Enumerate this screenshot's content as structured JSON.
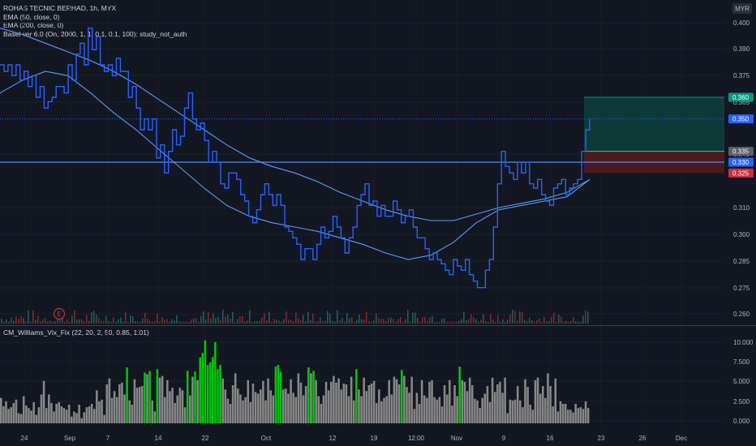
{
  "legend": {
    "symbol_line": "ROHAS TECNIC BERHAD, 1h, MYX",
    "ema50_line": "EMA (50, close, 0)",
    "ema200_line": "EMA (200, close, 0)",
    "basel_line": "Basel ver 6.0 (On, 2000, 1, 1, 0.1, 0.1, 100): study_not_auth",
    "indicator_line": "CM_Williams_Vix_Fix (22, 20, 2, 50, 0.85, 1.01)"
  },
  "currency_badge": "MYR",
  "earnings_marker": "E",
  "colors": {
    "background": "#131722",
    "price_line": "#2962ff",
    "ema_line": "#5b9cf6",
    "target_zone": "#0c3b37",
    "stop_zone": "#4a1a1d",
    "tag_blue": "#2962ff",
    "tag_green": "#089981",
    "tag_red": "#cc2f3c",
    "vix_gray": "#888888",
    "vix_green": "#00c805",
    "vol_green": "#1f5f57",
    "vol_red": "#7a2a2f"
  },
  "chart_data": [
    {
      "type": "line",
      "title": "ROHAS TECNIC BERHAD, 1h, MYX",
      "ylabel": "MYR",
      "ylim": [
        0.255,
        0.405
      ],
      "x_ticks": [
        "24",
        "Sep",
        "7",
        "14",
        "22",
        "Oct",
        "12",
        "19",
        "12:00",
        "Nov",
        "9",
        "16",
        "23",
        "26",
        "Dec"
      ],
      "y_ticks": [
        "0.400",
        "0.390",
        "0.375",
        "0.365",
        "0.340",
        "0.310",
        "0.300",
        "0.285",
        "0.275",
        "0.260"
      ],
      "price_tags": [
        {
          "label": "0.360",
          "kind": "target"
        },
        {
          "label": "0.350",
          "kind": "last"
        },
        {
          "label": "0.335",
          "kind": "entry"
        },
        {
          "label": "0.330",
          "kind": "level"
        },
        {
          "label": "0.325",
          "kind": "stop"
        }
      ],
      "horizontal_levels": [
        0.35,
        0.33
      ],
      "position_zones": {
        "target": [
          0.335,
          0.36
        ],
        "stop": [
          0.325,
          0.335
        ]
      },
      "series": [
        {
          "name": "Close",
          "values": [
            0.375,
            0.372,
            0.375,
            0.37,
            0.375,
            0.368,
            0.372,
            0.365,
            0.37,
            0.36,
            0.365,
            0.355,
            0.358,
            0.36,
            0.365,
            0.365,
            0.362,
            0.375,
            0.368,
            0.38,
            0.385,
            0.375,
            0.392,
            0.382,
            0.388,
            0.375,
            0.372,
            0.375,
            0.37,
            0.378,
            0.372,
            0.372,
            0.36,
            0.365,
            0.355,
            0.345,
            0.35,
            0.345,
            0.35,
            0.332,
            0.338,
            0.325,
            0.335,
            0.345,
            0.338,
            0.342,
            0.355,
            0.362,
            0.35,
            0.345,
            0.348,
            0.34,
            0.33,
            0.335,
            0.33,
            0.32,
            0.318,
            0.325,
            0.325,
            0.322,
            0.315,
            0.312,
            0.305,
            0.302,
            0.308,
            0.315,
            0.32,
            0.315,
            0.31,
            0.315,
            0.31,
            0.3,
            0.298,
            0.295,
            0.292,
            0.285,
            0.29,
            0.29,
            0.285,
            0.292,
            0.3,
            0.295,
            0.298,
            0.305,
            0.3,
            0.295,
            0.288,
            0.295,
            0.3,
            0.31,
            0.315,
            0.32,
            0.31,
            0.312,
            0.305,
            0.31,
            0.305,
            0.305,
            0.312,
            0.308,
            0.302,
            0.305,
            0.308,
            0.3,
            0.295,
            0.295,
            0.29,
            0.285,
            0.288,
            0.285,
            0.283,
            0.28,
            0.278,
            0.285,
            0.282,
            0.28,
            0.285,
            0.278,
            0.275,
            0.272,
            0.272,
            0.28,
            0.285,
            0.3,
            0.32,
            0.335,
            0.328,
            0.325,
            0.322,
            0.33,
            0.325,
            0.33,
            0.32,
            0.318,
            0.322,
            0.315,
            0.312,
            0.31,
            0.318,
            0.32,
            0.322,
            0.315,
            0.318,
            0.32,
            0.322,
            0.335,
            0.345,
            0.35
          ]
        },
        {
          "name": "EMA 50",
          "values": [
            0.362,
            0.368,
            0.372,
            0.37,
            0.362,
            0.353,
            0.345,
            0.336,
            0.327,
            0.318,
            0.31,
            0.305,
            0.302,
            0.3,
            0.298,
            0.295,
            0.292,
            0.288,
            0.285,
            0.287,
            0.293,
            0.302,
            0.308,
            0.31,
            0.312,
            0.314,
            0.322
          ]
        },
        {
          "name": "EMA 200",
          "values": [
            0.392,
            0.389,
            0.385,
            0.381,
            0.377,
            0.372,
            0.366,
            0.359,
            0.352,
            0.345,
            0.338,
            0.332,
            0.328,
            0.325,
            0.321,
            0.316,
            0.312,
            0.308,
            0.305,
            0.303,
            0.303,
            0.306,
            0.309,
            0.311,
            0.313,
            0.316,
            0.322
          ]
        }
      ]
    },
    {
      "type": "bar",
      "title": "CM_Williams_Vix_Fix (22, 20, 2, 50, 0.85, 1.01)",
      "ylim": [
        0,
        11.5
      ],
      "y_ticks": [
        "10.000",
        "7.500",
        "5.000",
        "2.500",
        "0.000"
      ],
      "values": [
        3.0,
        2.0,
        2.6,
        1.7,
        1.9,
        2.4,
        2.8,
        1.2,
        1.1,
        3.2,
        2.1,
        1.8,
        1.5,
        2.5,
        1.0,
        1.9,
        3.4,
        5.0,
        1.8,
        3.4,
        2.4,
        1.4,
        2.3,
        2.5,
        2.0,
        1.8,
        1.6,
        2.2,
        0.8,
        1.4,
        1.2,
        2.2,
        0.6,
        1.3,
        1.9,
        2.0,
        2.3,
        1.7,
        3.9,
        2.6,
        2.8,
        1.0,
        4.6,
        5.3,
        3.0,
        3.8,
        3.1,
        4.6,
        4.8,
        3.4,
        6.6,
        2.7,
        2.2,
        5.2,
        4.2,
        4.3,
        4.4,
        6.0,
        5.8,
        6.2,
        2.7,
        1.4,
        6.4,
        5.4,
        5.6,
        3.1,
        5.1,
        3.8,
        4.2,
        2.4,
        3.3,
        4.2,
        3.9,
        1.9,
        6.2,
        3.3,
        5.5,
        6.1,
        5.1,
        7.8,
        8.3,
        9.8,
        6.9,
        7.2,
        7.8,
        9.6,
        6.4,
        6.9,
        5.3,
        4.0,
        2.9,
        2.3,
        4.5,
        5.9,
        4.1,
        3.4,
        2.7,
        3.1,
        5.1,
        2.5,
        4.7,
        3.7,
        3.5,
        4.0,
        5.0,
        2.7,
        5.3,
        3.9,
        3.3,
        6.7,
        6.9,
        6.1,
        4.0,
        4.1,
        3.5,
        5.2,
        3.6,
        3.1,
        5.9,
        4.8,
        3.3,
        4.4,
        6.6,
        5.9,
        6.2,
        5.1,
        3.2,
        2.3,
        3.3,
        4.9,
        3.9,
        4.9,
        5.6,
        4.8,
        5.3,
        4.0,
        4.7,
        4.6,
        3.2,
        5.5,
        2.7,
        6.4,
        4.0,
        3.2,
        5.4,
        3.8,
        4.5,
        4.7,
        5.0,
        2.4,
        4.0,
        2.6,
        3.0,
        3.2,
        5.1,
        3.4,
        5.5,
        5.2,
        4.6,
        6.3,
        5.6,
        4.3,
        3.6,
        5.5,
        1.7,
        3.6,
        2.3,
        5.1,
        3.3,
        3.0,
        4.9,
        5.1,
        3.1,
        2.8,
        3.1,
        2.0,
        4.5,
        3.4,
        5.1,
        2.1,
        4.5,
        3.2,
        6.7,
        5.1,
        4.9,
        3.8,
        5.4,
        4.5,
        2.9,
        2.7,
        1.8,
        3.0,
        3.5,
        4.4,
        2.5,
        5.4,
        3.7,
        4.6,
        4.9,
        3.6,
        5.4,
        1.2,
        2.8,
        2.7,
        2.8,
        4.4,
        2.7,
        1.9,
        5.2,
        4.3,
        2.2,
        1.6,
        5.1,
        5.4,
        3.5,
        4.4,
        3.0,
        5.9,
        4.4,
        2.0,
        5.3,
        1.4,
        2.6,
        2.3,
        2.3,
        1.6,
        1.6,
        1.3,
        2.3,
        1.8,
        1.9,
        1.7,
        2.6,
        1.8
      ],
      "highlight_threshold": 6.0
    }
  ]
}
